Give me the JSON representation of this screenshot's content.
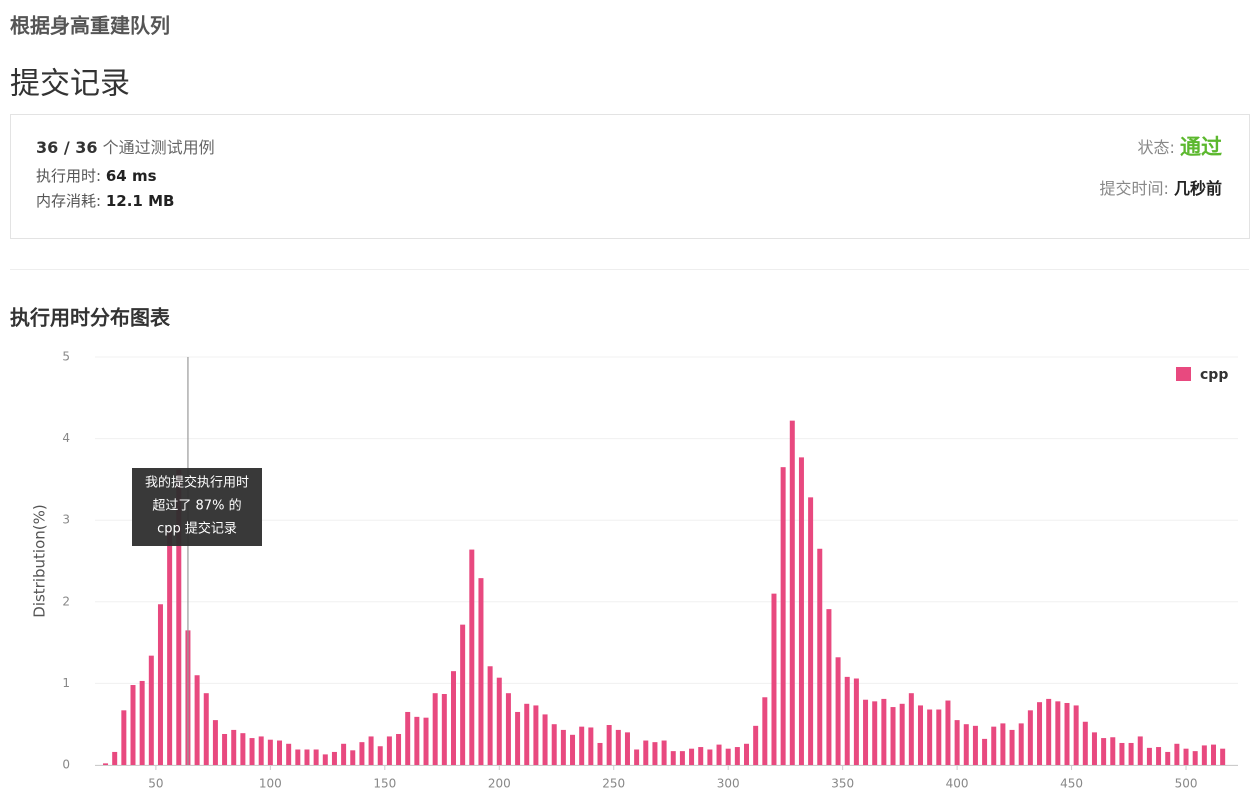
{
  "header": {
    "problem": "根据身高重建队列",
    "title": "提交记录"
  },
  "result": {
    "passed": "36 / 36",
    "passed_suffix": "个通过测试用例",
    "runtime_label": "执行用时:",
    "runtime": "64 ms",
    "memory_label": "内存消耗:",
    "memory": "12.1 MB",
    "status_label": "状态:",
    "status": "通过",
    "time_label": "提交时间:",
    "time": "几秒前"
  },
  "section_title": "执行用时分布图表",
  "chart_data": {
    "type": "bar",
    "ylabel": "Distribution(%)",
    "series": [
      {
        "name": "cpp",
        "color": "#e8497f",
        "values": [
          0.02,
          0.16,
          0.67,
          0.98,
          1.03,
          1.34,
          1.97,
          2.9,
          3.62,
          1.65,
          1.1,
          0.88,
          0.55,
          0.38,
          0.43,
          0.39,
          0.33,
          0.35,
          0.31,
          0.3,
          0.26,
          0.19,
          0.19,
          0.19,
          0.13,
          0.16,
          0.26,
          0.18,
          0.28,
          0.35,
          0.23,
          0.35,
          0.38,
          0.65,
          0.59,
          0.58,
          0.88,
          0.87,
          1.15,
          1.72,
          2.64,
          2.29,
          1.21,
          1.07,
          0.88,
          0.65,
          0.75,
          0.73,
          0.62,
          0.5,
          0.43,
          0.37,
          0.47,
          0.46,
          0.27,
          0.49,
          0.43,
          0.4,
          0.19,
          0.3,
          0.28,
          0.3,
          0.17,
          0.17,
          0.2,
          0.22,
          0.19,
          0.25,
          0.2,
          0.22,
          0.26,
          0.48,
          0.83,
          2.1,
          3.65,
          4.22,
          3.77,
          3.28,
          2.65,
          1.91,
          1.32,
          1.08,
          1.06,
          0.8,
          0.78,
          0.81,
          0.71,
          0.75,
          0.88,
          0.73,
          0.68,
          0.68,
          0.79,
          0.55,
          0.5,
          0.48,
          0.32,
          0.47,
          0.51,
          0.43,
          0.51,
          0.67,
          0.77,
          0.81,
          0.78,
          0.76,
          0.73,
          0.53,
          0.4,
          0.33,
          0.34,
          0.27,
          0.27,
          0.35,
          0.21,
          0.22,
          0.16,
          0.26,
          0.2,
          0.17,
          0.24,
          0.25,
          0.2
        ]
      }
    ],
    "x": [
      28,
      32,
      36,
      40,
      44,
      48,
      52,
      56,
      60,
      64,
      68,
      72,
      76,
      80,
      84,
      88,
      92,
      96,
      100,
      104,
      108,
      112,
      116,
      120,
      124,
      128,
      132,
      136,
      140,
      144,
      148,
      152,
      156,
      160,
      164,
      168,
      172,
      176,
      180,
      184,
      188,
      192,
      196,
      200,
      204,
      208,
      212,
      216,
      220,
      224,
      228,
      232,
      236,
      240,
      244,
      248,
      252,
      256,
      260,
      264,
      268,
      272,
      276,
      280,
      284,
      288,
      292,
      296,
      300,
      304,
      308,
      312,
      316,
      320,
      324,
      328,
      332,
      336,
      340,
      344,
      348,
      352,
      356,
      360,
      364,
      368,
      372,
      376,
      380,
      384,
      388,
      392,
      396,
      400,
      404,
      408,
      412,
      416,
      420,
      424,
      428,
      432,
      436,
      440,
      444,
      448,
      452,
      456,
      460,
      464,
      468,
      472,
      476,
      480,
      484,
      488,
      492,
      496,
      500,
      504,
      508,
      512,
      516
    ],
    "xlim": [
      23.4,
      522.7
    ],
    "xticks": [
      50,
      100,
      150,
      200,
      250,
      300,
      350,
      400,
      450,
      500
    ],
    "ylim": [
      0,
      5
    ],
    "yticks": [
      0,
      1,
      2,
      3,
      4,
      5
    ],
    "grid": true,
    "legend": "top-right",
    "marker_x": 64,
    "tooltip": [
      "我的提交执行用时",
      "超过了 87% 的",
      "cpp 提交记录"
    ]
  }
}
